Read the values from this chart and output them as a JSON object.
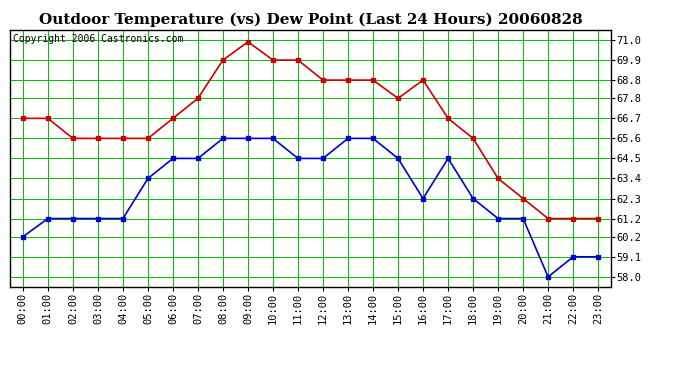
{
  "title": "Outdoor Temperature (vs) Dew Point (Last 24 Hours) 20060828",
  "copyright": "Copyright 2006 Castronics.com",
  "x_labels": [
    "00:00",
    "01:00",
    "02:00",
    "03:00",
    "04:00",
    "05:00",
    "06:00",
    "07:00",
    "08:00",
    "09:00",
    "10:00",
    "11:00",
    "12:00",
    "13:00",
    "14:00",
    "15:00",
    "16:00",
    "17:00",
    "18:00",
    "19:00",
    "20:00",
    "21:00",
    "22:00",
    "23:00"
  ],
  "temp_red": [
    66.7,
    66.7,
    65.6,
    65.6,
    65.6,
    65.6,
    66.7,
    67.8,
    69.9,
    70.9,
    69.9,
    69.9,
    68.8,
    68.8,
    68.8,
    67.8,
    68.8,
    66.7,
    65.6,
    63.4,
    62.3,
    61.2,
    61.2,
    61.2
  ],
  "temp_blue": [
    60.2,
    61.2,
    61.2,
    61.2,
    61.2,
    63.4,
    64.5,
    64.5,
    65.6,
    65.6,
    65.6,
    64.5,
    64.5,
    65.6,
    65.6,
    64.5,
    62.3,
    64.5,
    62.3,
    61.2,
    61.2,
    58.0,
    59.1,
    59.1
  ],
  "red_color": "#cc0000",
  "blue_color": "#0000cc",
  "bg_color": "#ffffff",
  "plot_bg_color": "#ffffff",
  "grid_color": "#00bb00",
  "border_color": "#000000",
  "ylim_min": 57.45,
  "ylim_max": 71.55,
  "yticks": [
    58.0,
    59.1,
    60.2,
    61.2,
    62.3,
    63.4,
    64.5,
    65.6,
    66.7,
    67.8,
    68.8,
    69.9,
    71.0
  ],
  "title_fontsize": 11,
  "copyright_fontsize": 7,
  "tick_fontsize": 7.5,
  "marker_size": 3,
  "line_width": 1.2
}
